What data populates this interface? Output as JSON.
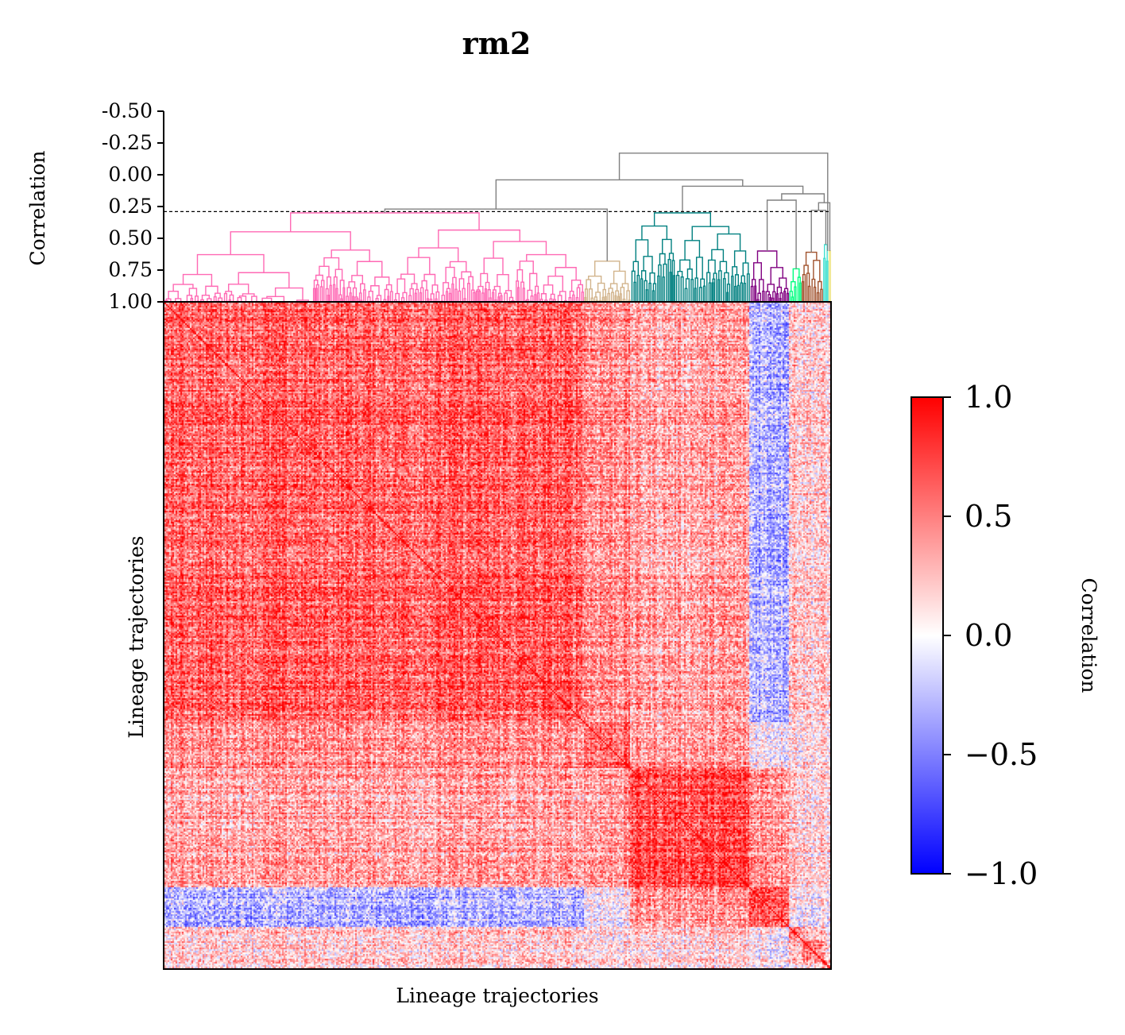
{
  "chart_data": {
    "type": "heatmap",
    "title": "rm2",
    "xlabel": "Lineage trajectories",
    "ylabel": "Lineage trajectories",
    "dendrogram": {
      "ylabel": "Correlation",
      "yticks": [
        "-0.50",
        "-0.25",
        "0.00",
        "0.25",
        "0.50",
        "0.75",
        "1.00"
      ],
      "ylim": [
        1.0,
        -0.5
      ],
      "threshold": 0.29,
      "clusters": [
        {
          "color": "#ff69b4",
          "start": 0.0,
          "end": 0.63,
          "join": 0.3
        },
        {
          "color": "#d2b48c",
          "start": 0.63,
          "end": 0.7,
          "join": 0.68
        },
        {
          "color": "#008080",
          "start": 0.7,
          "end": 0.879,
          "join": 0.3
        },
        {
          "color": "#800080",
          "start": 0.879,
          "end": 0.937,
          "join": 0.6
        },
        {
          "color": "#00ff7f",
          "start": 0.937,
          "end": 0.956,
          "join": 0.74
        },
        {
          "color": "#a0522d",
          "start": 0.956,
          "end": 0.988,
          "join": 0.61
        },
        {
          "color": "#40e0d0",
          "start": 0.988,
          "end": 0.996,
          "join": 0.55
        },
        {
          "color": "#f0e68c",
          "start": 0.996,
          "end": 1.0,
          "join": 0.6
        }
      ],
      "upper_links_color": "#808080"
    },
    "colorbar": {
      "label": "Correlation",
      "ticks": [
        "1.0",
        "0.5",
        "0.0",
        "−0.5",
        "−1.0"
      ],
      "range": [
        -1.0,
        1.0
      ],
      "colors": [
        "#0000ff",
        "#ffffff",
        "#ff0000"
      ]
    }
  }
}
